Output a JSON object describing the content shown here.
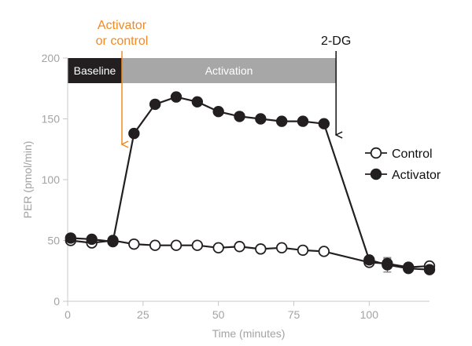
{
  "chart_data": {
    "type": "line",
    "xlabel": "Time (minutes)",
    "ylabel": "PER (pmol/min)",
    "xlim": [
      0,
      120
    ],
    "ylim": [
      0,
      200
    ],
    "xticks": [
      0,
      25,
      50,
      75,
      100
    ],
    "yticks": [
      0,
      50,
      100,
      150,
      200
    ],
    "grid": false,
    "legend": "right",
    "bands": [
      {
        "label": "Baseline",
        "x_start": 0,
        "x_end": 18,
        "color": "#231f20"
      },
      {
        "label": "Activation",
        "x_start": 18,
        "x_end": 89,
        "color": "#a7a7a7"
      }
    ],
    "annotations": [
      {
        "lines": [
          "Activator",
          "or control"
        ],
        "x": 18,
        "color": "#f08a24"
      },
      {
        "lines": [
          "2-DG"
        ],
        "x": 89,
        "color": "#111111"
      }
    ],
    "series": [
      {
        "name": "Control",
        "marker": "open-circle",
        "color": "#231f20",
        "x": [
          1,
          8,
          15,
          22,
          29,
          36,
          43,
          50,
          57,
          64,
          71,
          78,
          85,
          100,
          106,
          113,
          120
        ],
        "y": [
          50,
          48,
          50,
          47,
          46,
          46,
          46,
          44,
          45,
          43,
          44,
          42,
          41,
          32,
          31,
          28,
          29
        ],
        "err": [
          0,
          0,
          0,
          0,
          0,
          0,
          0,
          0,
          0,
          0,
          0,
          0,
          0,
          3,
          4,
          2,
          2
        ]
      },
      {
        "name": "Activator",
        "marker": "filled-circle",
        "color": "#231f20",
        "x": [
          1,
          8,
          15,
          22,
          29,
          36,
          43,
          50,
          57,
          64,
          71,
          78,
          85,
          100,
          106,
          113,
          120
        ],
        "y": [
          52,
          51,
          49,
          138,
          162,
          168,
          164,
          156,
          152,
          150,
          148,
          148,
          146,
          34,
          30,
          27,
          26
        ],
        "err": [
          0,
          0,
          0,
          0,
          0,
          0,
          0,
          0,
          0,
          0,
          0,
          0,
          0,
          2,
          6,
          2,
          2
        ]
      }
    ]
  }
}
